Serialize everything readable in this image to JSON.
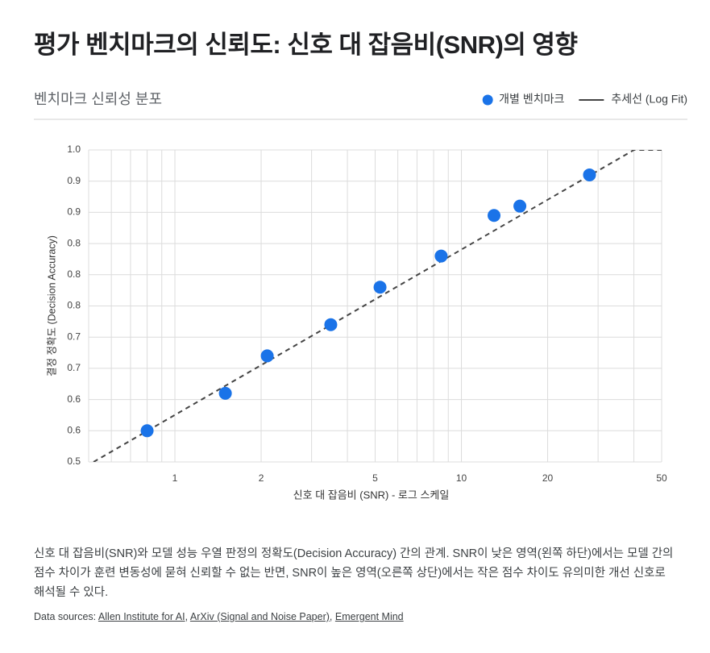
{
  "chart_data": {
    "type": "scatter",
    "title": "평가 벤치마크의 신뢰도: 신호 대 잡음비(SNR)의 영향",
    "subtitle": "벤치마크 신뢰성 분포",
    "x_label": "신호 대 잡음비 (SNR) - 로그 스케일",
    "y_label": "결정 정확도 (Decision Accuracy)",
    "xscale": "log",
    "xlim": [
      0.5,
      50
    ],
    "xticks": [
      1,
      2,
      5,
      10,
      20,
      50
    ],
    "xticks_minor": [
      0.6,
      0.7,
      0.8,
      0.9,
      3,
      4,
      6,
      7,
      8,
      9,
      30,
      40
    ],
    "ylim": [
      0.5,
      1.0
    ],
    "yticks": [
      0.5,
      {
        "value": 0.55,
        "label": "0.6"
      },
      {
        "value": 0.6,
        "label": "0.6"
      },
      {
        "value": 0.65,
        "label": "0.7"
      },
      {
        "value": 0.7,
        "label": "0.7"
      },
      {
        "value": 0.75,
        "label": "0.8"
      },
      {
        "value": 0.8,
        "label": "0.8"
      },
      {
        "value": 0.85,
        "label": "0.8"
      },
      {
        "value": 0.9,
        "label": "0.9"
      },
      {
        "value": 0.95,
        "label": "0.9"
      },
      {
        "value": 1.0,
        "label": "1.0"
      }
    ],
    "grid": true,
    "legend": "top-right",
    "series": [
      {
        "name": "개별 벤치마크",
        "kind": "points",
        "color": "#1a73e8",
        "x": [
          0.8,
          1.5,
          2.1,
          3.5,
          5.2,
          8.5,
          13,
          16,
          28
        ],
        "values": [
          0.55,
          0.61,
          0.67,
          0.72,
          0.78,
          0.83,
          0.895,
          0.91,
          0.96
        ]
      },
      {
        "name": "추세선 (Log Fit)",
        "kind": "line",
        "color": "#444444",
        "x": [
          0.52,
          40,
          50
        ],
        "values": [
          0.5,
          1.0,
          1.0
        ]
      }
    ]
  },
  "caption": "신호 대 잡음비(SNR)와 모델 성능 우열 판정의 정확도(Decision Accuracy) 간의 관계. SNR이 낮은 영역(왼쪽 하단)에서는 모델 간의 점수 차이가 훈련 변동성에 묻혀 신뢰할 수 없는 반면, SNR이 높은 영역(오른쪽 상단)에서는 작은 점수 차이도 유의미한 개선 신호로 해석될 수 있다.",
  "sources": {
    "label": "Data sources:",
    "separator": ",",
    "links": [
      "Allen Institute for AI",
      "ArXiv (Signal and Noise Paper)",
      "Emergent Mind"
    ]
  }
}
